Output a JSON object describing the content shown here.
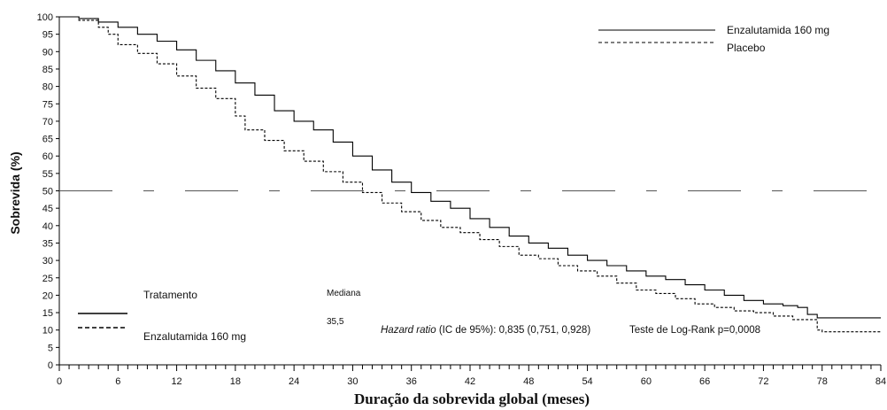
{
  "chart_data": {
    "type": "line",
    "title": "",
    "xlabel": "Duração da sobrevida global (meses)",
    "ylabel": "Sobrevida (%)",
    "xlim": [
      0,
      84
    ],
    "ylim": [
      0,
      100
    ],
    "x_ticks": [
      0,
      6,
      12,
      18,
      24,
      30,
      36,
      42,
      48,
      54,
      60,
      66,
      72,
      78,
      84
    ],
    "y_ticks": [
      0,
      5,
      10,
      15,
      20,
      25,
      30,
      35,
      40,
      45,
      50,
      55,
      60,
      65,
      70,
      75,
      80,
      85,
      90,
      95,
      100
    ],
    "reference_line_y": 50,
    "grid": false,
    "legend_position": "top-right",
    "series": [
      {
        "name": "Enzalutamida 160 mg",
        "style": "solid",
        "color": "#000000",
        "points": [
          [
            0,
            100
          ],
          [
            2,
            99.5
          ],
          [
            4,
            98.5
          ],
          [
            6,
            97
          ],
          [
            8,
            95
          ],
          [
            10,
            93
          ],
          [
            12,
            90.5
          ],
          [
            14,
            87.5
          ],
          [
            16,
            84.5
          ],
          [
            18,
            81
          ],
          [
            20,
            77.5
          ],
          [
            22,
            73
          ],
          [
            24,
            70
          ],
          [
            26,
            67.5
          ],
          [
            28,
            64
          ],
          [
            30,
            60
          ],
          [
            32,
            56
          ],
          [
            34,
            52.5
          ],
          [
            36,
            49.5
          ],
          [
            38,
            47
          ],
          [
            40,
            45
          ],
          [
            42,
            42
          ],
          [
            44,
            39.5
          ],
          [
            46,
            37
          ],
          [
            48,
            35
          ],
          [
            50,
            33.5
          ],
          [
            52,
            31.5
          ],
          [
            54,
            30
          ],
          [
            56,
            28.5
          ],
          [
            58,
            27
          ],
          [
            60,
            25.5
          ],
          [
            62,
            24.5
          ],
          [
            64,
            23
          ],
          [
            66,
            21.5
          ],
          [
            68,
            20
          ],
          [
            70,
            18.5
          ],
          [
            72,
            17.5
          ],
          [
            74,
            17
          ],
          [
            75.5,
            16.5
          ],
          [
            76.5,
            14.5
          ],
          [
            77.5,
            13.5
          ],
          [
            84,
            13.5
          ]
        ]
      },
      {
        "name": "Placebo",
        "style": "dashed",
        "color": "#000000",
        "points": [
          [
            0,
            100
          ],
          [
            2,
            99
          ],
          [
            4,
            97
          ],
          [
            5,
            95
          ],
          [
            6,
            92
          ],
          [
            8,
            89.5
          ],
          [
            10,
            86.5
          ],
          [
            12,
            83
          ],
          [
            14,
            79.5
          ],
          [
            16,
            76.5
          ],
          [
            18,
            71.5
          ],
          [
            19,
            67.5
          ],
          [
            21,
            64.5
          ],
          [
            23,
            61.5
          ],
          [
            25,
            58.5
          ],
          [
            27,
            55.5
          ],
          [
            29,
            52.5
          ],
          [
            31,
            49.5
          ],
          [
            33,
            46.5
          ],
          [
            35,
            44
          ],
          [
            37,
            41.5
          ],
          [
            39,
            39.5
          ],
          [
            41,
            38
          ],
          [
            43,
            36
          ],
          [
            45,
            34
          ],
          [
            47,
            31.5
          ],
          [
            49,
            30.5
          ],
          [
            51,
            28.5
          ],
          [
            53,
            27
          ],
          [
            55,
            25.5
          ],
          [
            57,
            23.5
          ],
          [
            59,
            21.5
          ],
          [
            61,
            20.5
          ],
          [
            63,
            19
          ],
          [
            65,
            17.5
          ],
          [
            67,
            16.5
          ],
          [
            69,
            15.5
          ],
          [
            71,
            15
          ],
          [
            73,
            14
          ],
          [
            75,
            13
          ],
          [
            76,
            13
          ],
          [
            77.5,
            10
          ],
          [
            78,
            9.5
          ],
          [
            84,
            9.5
          ]
        ]
      }
    ],
    "legend": {
      "entries": [
        "Enzalutamida 160 mg",
        "Placebo"
      ]
    },
    "table": {
      "header_treatment": "Tratamento",
      "header_median": "Mediana",
      "row_treatment": "Enzalutamida 160 mg",
      "row_median": "35,5"
    },
    "annotations": {
      "hazard_label": "Hazard ratio",
      "hazard_text": " (IC de 95%): 0,835 (0,751, 0,928)",
      "logrank_text": "Teste de Log-Rank p=0,0008"
    }
  }
}
